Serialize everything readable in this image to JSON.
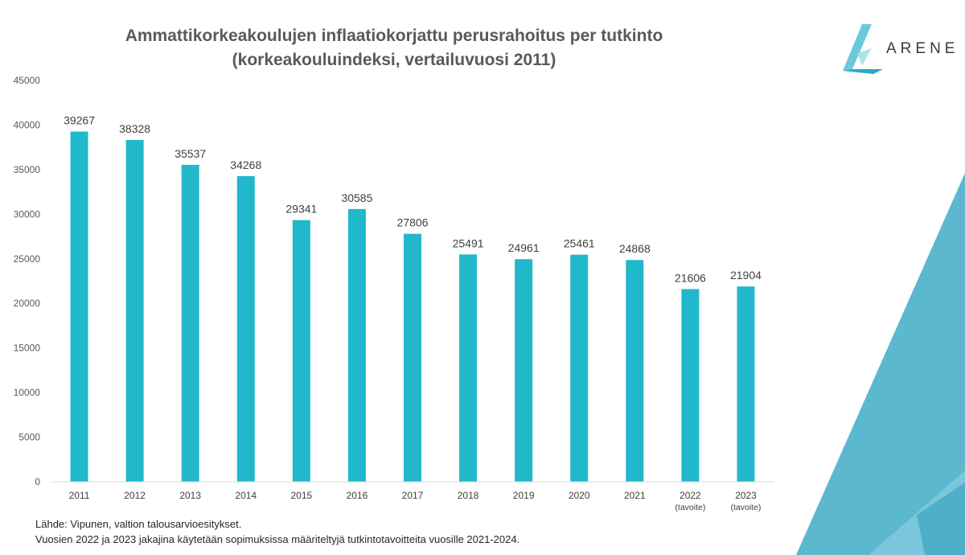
{
  "brand": {
    "logo_text": "ARENE",
    "accent": "#22b8cc"
  },
  "chart_data": {
    "type": "bar",
    "title": [
      "Ammattikorkeakoulujen inflaatiokorjattu perusrahoitus per tutkinto",
      "(korkeakouluindeksi, vertailuvuosi 2011)"
    ],
    "categories": [
      [
        "2011"
      ],
      [
        "2012"
      ],
      [
        "2013"
      ],
      [
        "2014"
      ],
      [
        "2015"
      ],
      [
        "2016"
      ],
      [
        "2017"
      ],
      [
        "2018"
      ],
      [
        "2019"
      ],
      [
        "2020"
      ],
      [
        "2021"
      ],
      [
        "2022",
        "(tavoite)"
      ],
      [
        "2023",
        "(tavoite)"
      ]
    ],
    "values": [
      39267,
      38328,
      35537,
      34268,
      29341,
      30585,
      27806,
      25491,
      24961,
      25461,
      24868,
      21606,
      21904
    ],
    "ylim": [
      0,
      45000
    ],
    "yticks": [
      0,
      5000,
      10000,
      15000,
      20000,
      25000,
      30000,
      35000,
      40000,
      45000
    ],
    "grid": false,
    "bar_color": "#22b8cc",
    "data_labels": true
  },
  "notes": [
    "Lähde: Vipunen, valtion talousarvioesitykset.",
    "Vuosien 2022 ja 2023 jakajina käytetään sopimuksissa määriteltyjä tutkintotavoitteita vuosille 2021-2024."
  ]
}
